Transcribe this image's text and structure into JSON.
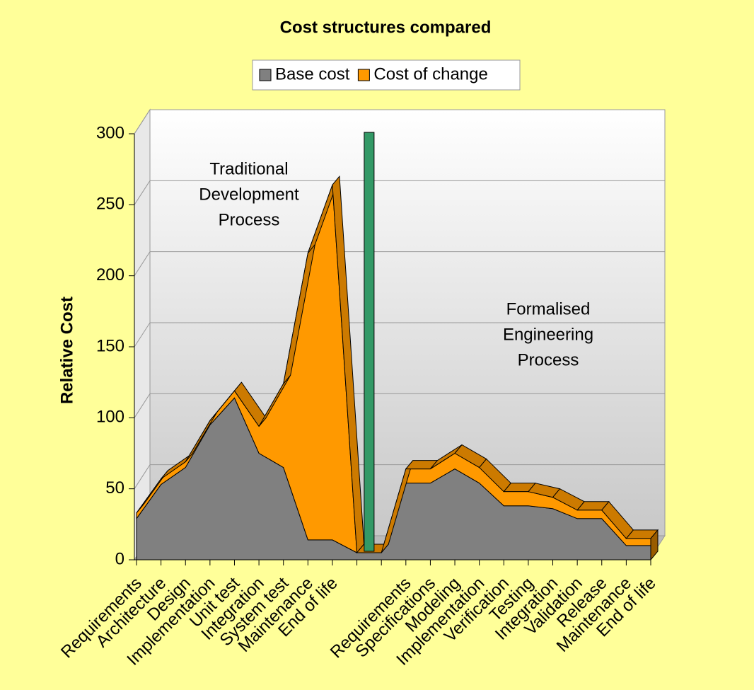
{
  "chart_data": {
    "type": "area",
    "stacked": true,
    "three_d": true,
    "title": "Cost structures compared",
    "y_label": "Relative Cost",
    "categories": [
      "Requirements",
      "Architecture",
      "Design",
      "Implementation",
      "Unit test",
      "Integration",
      "System test",
      "Maintenance",
      "End of life",
      null,
      null,
      "Requirements",
      "Specifications",
      "Modeling",
      "Implementation",
      "Verification",
      "Testing",
      "Integration",
      "Validation",
      "Release",
      "Maintenance",
      "End of life"
    ],
    "series": [
      {
        "name": "Base cost",
        "color": "#808080",
        "values": [
          29,
          53,
          65,
          95,
          114,
          75,
          65,
          14,
          14,
          5,
          5,
          54,
          54,
          64,
          54,
          38,
          38,
          36,
          29,
          29,
          10,
          10
        ]
      },
      {
        "name": "Cost of change",
        "color": "#ff9900",
        "values": [
          4,
          4,
          4,
          3,
          5,
          19,
          59,
          202,
          250,
          0,
          0,
          10,
          10,
          11,
          11,
          10,
          10,
          8,
          6,
          6,
          5,
          5
        ]
      }
    ],
    "marker": {
      "value": 295,
      "color": "#339966"
    },
    "annotations": [
      {
        "lines": [
          "Traditional",
          "Development",
          "Process"
        ]
      },
      {
        "lines": [
          "Formalised",
          "Engineering",
          "Process"
        ]
      }
    ],
    "ylim": [
      0,
      300
    ],
    "yticks": [
      0,
      50,
      100,
      150,
      200,
      250,
      300
    ],
    "grid": true,
    "legend": "top"
  }
}
